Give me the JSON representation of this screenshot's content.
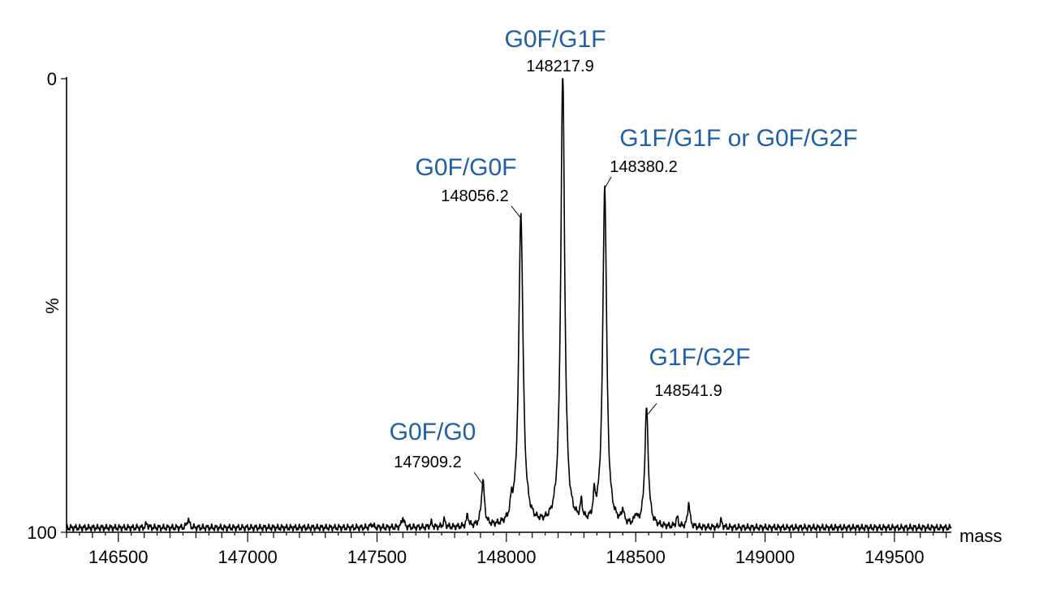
{
  "chart_data": {
    "type": "line",
    "title": "",
    "xlabel": "mass",
    "ylabel": "%",
    "xlim": [
      146300,
      149720
    ],
    "ylim": [
      0,
      100
    ],
    "x_ticks": [
      146500,
      147000,
      147500,
      148000,
      148500,
      149000,
      149500
    ],
    "y_tick_labels": [
      "0",
      "100"
    ],
    "accent_color": "#1f5fa8",
    "baseline": 1.0,
    "peaks": [
      {
        "mass": 148217.9,
        "mass_label": "148217.9",
        "name": "G0F/G1F",
        "height": 100,
        "width": 9
      },
      {
        "mass": 148056.2,
        "mass_label": "148056.2",
        "name": "G0F/G0F",
        "height": 69,
        "width": 10
      },
      {
        "mass": 148380.2,
        "mass_label": "148380.2",
        "name": "G1F/G1F or G0F/G2F",
        "height": 75,
        "width": 9
      },
      {
        "mass": 148541.9,
        "mass_label": "148541.9",
        "name": "G1F/G2F",
        "height": 26,
        "width": 8
      },
      {
        "mass": 147909.2,
        "mass_label": "147909.2",
        "name": "G0F/G0",
        "height": 10,
        "width": 7
      }
    ],
    "minor_peaks": [
      {
        "mass": 146610,
        "height": 0.9
      },
      {
        "mass": 146770,
        "height": 2.0
      },
      {
        "mass": 147480,
        "height": 0.8
      },
      {
        "mass": 147600,
        "height": 2.3
      },
      {
        "mass": 147710,
        "height": 1.0
      },
      {
        "mass": 147760,
        "height": 1.6
      },
      {
        "mass": 147850,
        "height": 2.5
      },
      {
        "mass": 148020,
        "height": 3.5
      },
      {
        "mass": 148290,
        "height": 4.0
      },
      {
        "mass": 148340,
        "height": 5.0
      },
      {
        "mass": 148450,
        "height": 3.0
      },
      {
        "mass": 148500,
        "height": 2.0
      },
      {
        "mass": 148660,
        "height": 2.0
      },
      {
        "mass": 148705,
        "height": 5.5
      },
      {
        "mass": 148830,
        "height": 1.5
      }
    ]
  }
}
